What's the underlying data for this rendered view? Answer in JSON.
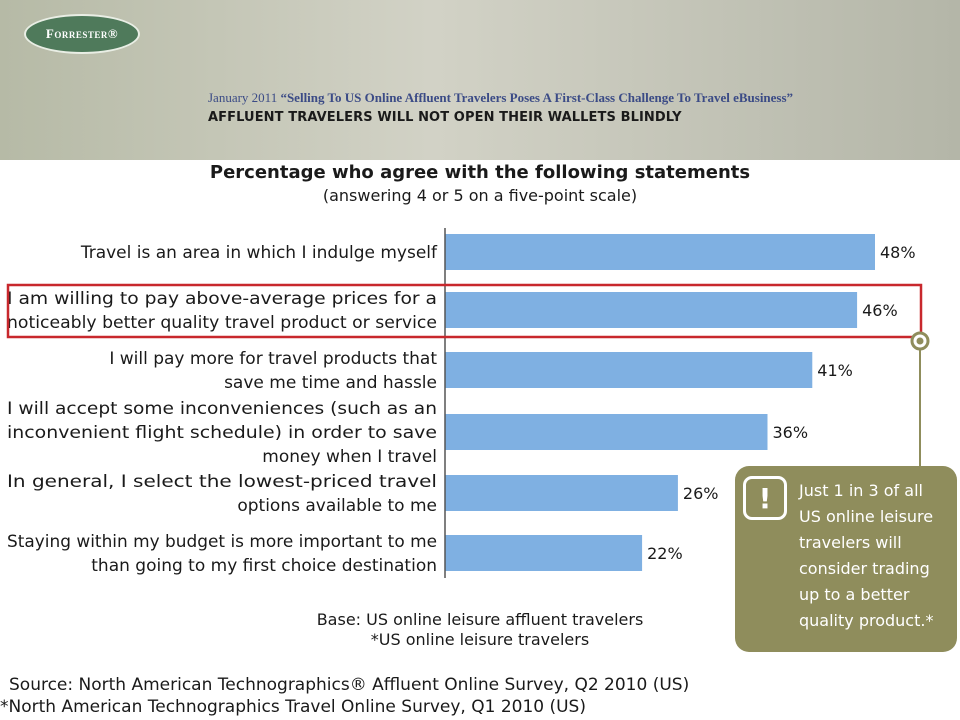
{
  "header": {
    "logo_text": "Forrester®",
    "report_date": "January 2011",
    "report_title": "“Selling To US Online Affluent Travelers Poses A First-Class Challenge To Travel eBusiness”",
    "headline": "AFFLUENT TRAVELERS WILL NOT OPEN THEIR WALLETS BLINDLY"
  },
  "colors": {
    "bar": "#7fb0e2",
    "highlight_box": "#c8282d",
    "callout_bg": "#8f8d5c",
    "header_band": "#c9cabd"
  },
  "chart_data": {
    "type": "bar",
    "orientation": "horizontal",
    "title": "Percentage who agree with the following statements",
    "subtitle": "(answering 4 or 5 on a five-point scale)",
    "categories": [
      [
        "Travel is an area in which I indulge myself"
      ],
      [
        "I am willing to pay above-average prices for a",
        "noticeably better quality travel product or service"
      ],
      [
        "I will pay more for travel products that",
        "save me time and hassle"
      ],
      [
        "I will accept some inconveniences (such as an",
        "inconvenient flight schedule) in order to save",
        "money when I travel"
      ],
      [
        "In general, I select the lowest-priced travel",
        "options available to me"
      ],
      [
        "Staying within my budget is more important to me",
        "than going to my first choice destination"
      ]
    ],
    "values": [
      48,
      46,
      41,
      36,
      26,
      22
    ],
    "value_labels": [
      "48%",
      "46%",
      "41%",
      "36%",
      "26%",
      "22%"
    ],
    "highlighted_index": 1,
    "xlim": [
      0,
      48
    ],
    "grid": false,
    "legend": "none"
  },
  "callout": {
    "icon": "exclamation-icon",
    "icon_glyph": "!",
    "text": "Just 1 in 3 of all US online leisure travelers will consider trading up to a better quality product.*"
  },
  "base_note": {
    "line1": "Base: US online leisure affluent travelers",
    "line2": "*US online leisure travelers"
  },
  "source": {
    "line1": "Source: North American Technographics® Affluent Online Survey, Q2 2010 (US)",
    "line2": "*North American Technographics Travel Online Survey, Q1 2010 (US)"
  }
}
